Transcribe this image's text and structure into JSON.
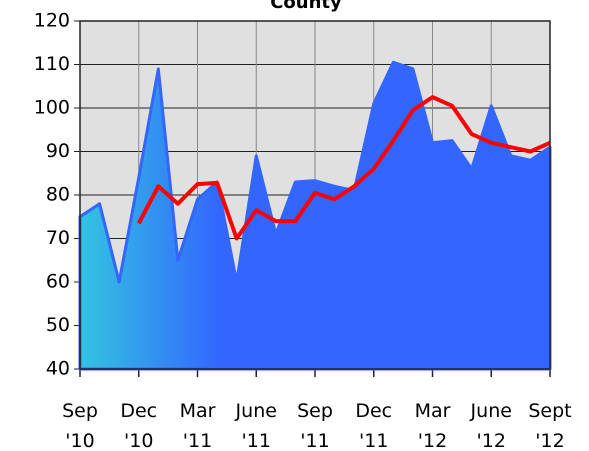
{
  "chart_data": {
    "type": "area-line",
    "title": "County",
    "categories": [
      "Sep '10",
      null,
      null,
      "Dec '10",
      null,
      null,
      "Mar '11",
      null,
      null,
      "June '11",
      null,
      null,
      "Sep '11",
      null,
      null,
      "Dec '11",
      null,
      null,
      "Mar '12",
      null,
      null,
      "June '12",
      null,
      null,
      "Sept '12"
    ],
    "series": [
      {
        "kind": "area",
        "color": "#3366ff",
        "values": [
          75,
          78,
          60,
          84,
          109,
          65,
          79,
          83,
          60,
          89,
          71,
          83,
          83.3,
          82,
          81,
          101,
          110.5,
          109,
          92,
          92.5,
          86,
          100.5,
          89,
          88,
          91
        ]
      },
      {
        "kind": "line",
        "color": "#ff0000",
        "values": [
          null,
          null,
          null,
          73.5,
          82,
          78,
          82.5,
          82.8,
          70,
          76.5,
          74,
          74,
          80.5,
          79,
          82,
          86,
          92.5,
          99.5,
          102.5,
          100.5,
          94,
          92,
          91,
          90,
          92
        ]
      }
    ],
    "ylim": [
      40,
      120
    ],
    "yticks": [
      40,
      50,
      60,
      70,
      80,
      90,
      100,
      110,
      120
    ],
    "grid": true
  }
}
